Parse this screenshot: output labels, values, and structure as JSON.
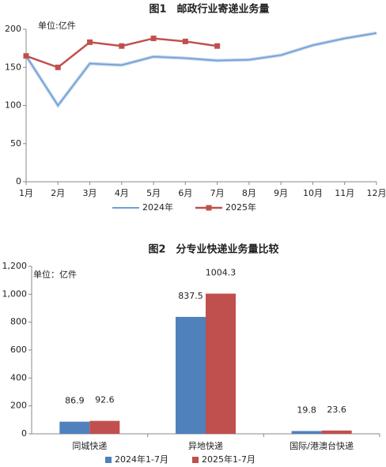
{
  "chart_data": [
    {
      "type": "line",
      "title": "图1　邮政行业寄递业务量",
      "unit": "单位:亿件",
      "categories": [
        "1月",
        "2月",
        "3月",
        "4月",
        "5月",
        "6月",
        "7月",
        "8月",
        "9月",
        "10月",
        "11月",
        "12月"
      ],
      "series": [
        {
          "name": "2024年",
          "color": "#6f9fd6",
          "values": [
            165,
            100,
            155,
            153,
            164,
            162,
            159,
            160,
            166,
            179,
            188,
            195
          ]
        },
        {
          "name": "2025年",
          "color": "#c0504d",
          "values": [
            165,
            150,
            183,
            178,
            188,
            184,
            178,
            null,
            null,
            null,
            null,
            null
          ]
        }
      ],
      "ylim": [
        0,
        200
      ],
      "yticks": [
        0,
        50,
        100,
        150,
        200
      ]
    },
    {
      "type": "bar",
      "title": "图2　分专业快递业务量比较",
      "unit": "单位：亿件",
      "categories": [
        "同城快递",
        "异地快递",
        "国际/港澳台快递"
      ],
      "series": [
        {
          "name": "2024年1-7月",
          "color": "#4f81bd",
          "values": [
            86.9,
            837.5,
            19.8
          ]
        },
        {
          "name": "2025年1-7月",
          "color": "#c0504d",
          "values": [
            92.6,
            1004.3,
            23.6
          ]
        }
      ],
      "ylim": [
        0,
        1200
      ],
      "yticks": [
        0,
        200,
        400,
        600,
        800,
        {
          "value": 1000,
          "label": "1,000"
        },
        {
          "value": 1200,
          "label": "1,200"
        }
      ]
    }
  ]
}
